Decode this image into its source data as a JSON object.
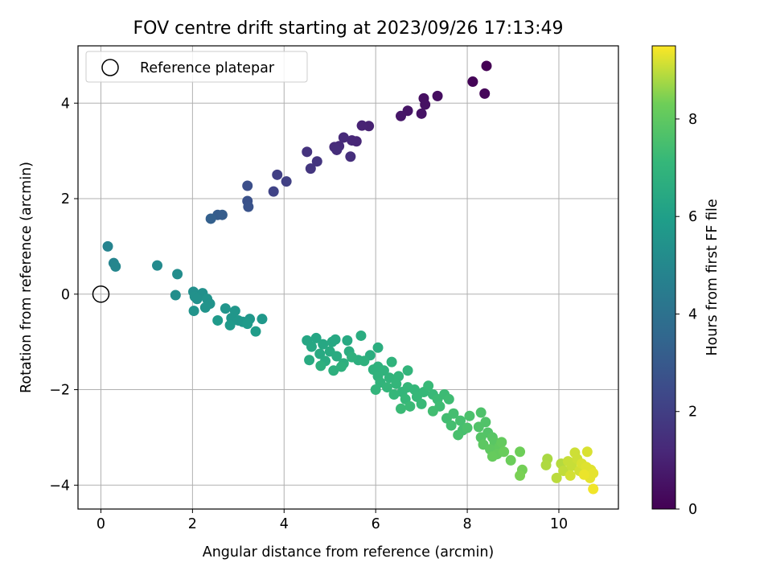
{
  "chart_data": {
    "type": "scatter",
    "title": "FOV centre drift starting at 2023/09/26 17:13:49",
    "xlabel": "Angular distance from reference (arcmin)",
    "ylabel": "Rotation from reference (arcmin)",
    "xlim": [
      -0.5,
      11.3
    ],
    "ylim": [
      -4.5,
      5.2
    ],
    "xticks": [
      0,
      2,
      4,
      6,
      8,
      10
    ],
    "yticks": [
      -4,
      -2,
      0,
      2,
      4
    ],
    "grid": true,
    "legend": {
      "position": "top-left",
      "entries": [
        "Reference platepar"
      ]
    },
    "reference_point": {
      "x": 0,
      "y": 0
    },
    "colorbar": {
      "label": "Hours from first FF file",
      "min": 0,
      "max": 9.5,
      "ticks": [
        0,
        2,
        4,
        6,
        8
      ],
      "colormap": "viridis"
    },
    "points": [
      {
        "x": 8.42,
        "y": 4.78,
        "c": 0.0
      },
      {
        "x": 8.12,
        "y": 4.45,
        "c": 0.1
      },
      {
        "x": 8.38,
        "y": 4.2,
        "c": 0.15
      },
      {
        "x": 7.35,
        "y": 4.15,
        "c": 0.4
      },
      {
        "x": 7.05,
        "y": 4.1,
        "c": 0.45
      },
      {
        "x": 7.08,
        "y": 3.97,
        "c": 0.5
      },
      {
        "x": 7.0,
        "y": 3.78,
        "c": 0.55
      },
      {
        "x": 6.7,
        "y": 3.84,
        "c": 0.6
      },
      {
        "x": 6.55,
        "y": 3.73,
        "c": 0.65
      },
      {
        "x": 5.85,
        "y": 3.52,
        "c": 1.0
      },
      {
        "x": 5.7,
        "y": 3.53,
        "c": 1.05
      },
      {
        "x": 5.58,
        "y": 3.2,
        "c": 1.15
      },
      {
        "x": 5.48,
        "y": 3.22,
        "c": 1.2
      },
      {
        "x": 5.3,
        "y": 3.28,
        "c": 1.25
      },
      {
        "x": 5.2,
        "y": 3.1,
        "c": 1.3
      },
      {
        "x": 5.1,
        "y": 3.08,
        "c": 1.35
      },
      {
        "x": 5.15,
        "y": 3.02,
        "c": 1.4
      },
      {
        "x": 5.45,
        "y": 2.88,
        "c": 1.45
      },
      {
        "x": 4.5,
        "y": 2.98,
        "c": 1.6
      },
      {
        "x": 4.72,
        "y": 2.78,
        "c": 1.65
      },
      {
        "x": 4.58,
        "y": 2.63,
        "c": 1.7
      },
      {
        "x": 3.85,
        "y": 2.5,
        "c": 2.0
      },
      {
        "x": 4.05,
        "y": 2.36,
        "c": 2.05
      },
      {
        "x": 3.77,
        "y": 2.15,
        "c": 2.15
      },
      {
        "x": 3.2,
        "y": 2.27,
        "c": 2.6
      },
      {
        "x": 3.2,
        "y": 1.95,
        "c": 2.7
      },
      {
        "x": 3.22,
        "y": 1.83,
        "c": 2.75
      },
      {
        "x": 2.55,
        "y": 1.66,
        "c": 3.1
      },
      {
        "x": 2.65,
        "y": 1.66,
        "c": 3.15
      },
      {
        "x": 2.4,
        "y": 1.58,
        "c": 3.25
      },
      {
        "x": 0.15,
        "y": 1.0,
        "c": 4.8
      },
      {
        "x": 0.28,
        "y": 0.65,
        "c": 4.85
      },
      {
        "x": 0.32,
        "y": 0.58,
        "c": 4.9
      },
      {
        "x": 1.23,
        "y": 0.6,
        "c": 5.1
      },
      {
        "x": 1.67,
        "y": 0.42,
        "c": 5.2
      },
      {
        "x": 1.63,
        "y": -0.02,
        "c": 5.25
      },
      {
        "x": 2.02,
        "y": 0.05,
        "c": 5.3
      },
      {
        "x": 2.22,
        "y": 0.02,
        "c": 5.35
      },
      {
        "x": 2.05,
        "y": -0.05,
        "c": 5.4
      },
      {
        "x": 2.1,
        "y": -0.1,
        "c": 5.4
      },
      {
        "x": 2.32,
        "y": -0.1,
        "c": 5.45
      },
      {
        "x": 2.38,
        "y": -0.2,
        "c": 5.45
      },
      {
        "x": 2.28,
        "y": -0.28,
        "c": 5.5
      },
      {
        "x": 2.03,
        "y": -0.35,
        "c": 5.5
      },
      {
        "x": 2.72,
        "y": -0.3,
        "c": 5.55
      },
      {
        "x": 2.93,
        "y": -0.35,
        "c": 5.6
      },
      {
        "x": 2.85,
        "y": -0.5,
        "c": 5.6
      },
      {
        "x": 3.0,
        "y": -0.55,
        "c": 5.65
      },
      {
        "x": 3.25,
        "y": -0.52,
        "c": 5.65
      },
      {
        "x": 3.1,
        "y": -0.58,
        "c": 5.7
      },
      {
        "x": 3.52,
        "y": -0.52,
        "c": 5.7
      },
      {
        "x": 2.55,
        "y": -0.55,
        "c": 5.75
      },
      {
        "x": 2.82,
        "y": -0.65,
        "c": 5.75
      },
      {
        "x": 3.2,
        "y": -0.62,
        "c": 5.8
      },
      {
        "x": 3.38,
        "y": -0.78,
        "c": 5.85
      },
      {
        "x": 4.5,
        "y": -0.97,
        "c": 6.3
      },
      {
        "x": 4.7,
        "y": -0.92,
        "c": 6.3
      },
      {
        "x": 4.85,
        "y": -1.05,
        "c": 6.35
      },
      {
        "x": 4.6,
        "y": -1.1,
        "c": 6.35
      },
      {
        "x": 5.05,
        "y": -1.0,
        "c": 6.4
      },
      {
        "x": 5.12,
        "y": -0.95,
        "c": 6.4
      },
      {
        "x": 5.38,
        "y": -0.97,
        "c": 6.45
      },
      {
        "x": 4.78,
        "y": -1.25,
        "c": 6.45
      },
      {
        "x": 5.0,
        "y": -1.2,
        "c": 6.5
      },
      {
        "x": 4.55,
        "y": -1.38,
        "c": 6.5
      },
      {
        "x": 4.9,
        "y": -1.4,
        "c": 6.55
      },
      {
        "x": 5.15,
        "y": -1.3,
        "c": 6.55
      },
      {
        "x": 5.42,
        "y": -1.2,
        "c": 6.6
      },
      {
        "x": 5.68,
        "y": -0.87,
        "c": 6.6
      },
      {
        "x": 6.05,
        "y": -1.12,
        "c": 6.65
      },
      {
        "x": 5.88,
        "y": -1.28,
        "c": 6.65
      },
      {
        "x": 5.62,
        "y": -1.38,
        "c": 6.7
      },
      {
        "x": 5.3,
        "y": -1.45,
        "c": 6.7
      },
      {
        "x": 5.08,
        "y": -1.6,
        "c": 6.75
      },
      {
        "x": 4.8,
        "y": -1.5,
        "c": 6.75
      },
      {
        "x": 5.25,
        "y": -1.52,
        "c": 6.8
      },
      {
        "x": 5.48,
        "y": -1.32,
        "c": 6.8
      },
      {
        "x": 5.75,
        "y": -1.4,
        "c": 6.8
      },
      {
        "x": 5.95,
        "y": -1.58,
        "c": 6.85
      },
      {
        "x": 6.05,
        "y": -1.52,
        "c": 6.85
      },
      {
        "x": 6.18,
        "y": -1.6,
        "c": 6.9
      },
      {
        "x": 6.35,
        "y": -1.42,
        "c": 6.9
      },
      {
        "x": 6.05,
        "y": -1.72,
        "c": 6.9
      },
      {
        "x": 6.1,
        "y": -1.85,
        "c": 6.95
      },
      {
        "x": 6.3,
        "y": -1.75,
        "c": 6.95
      },
      {
        "x": 6.5,
        "y": -1.72,
        "c": 7.0
      },
      {
        "x": 6.7,
        "y": -1.6,
        "c": 7.0
      },
      {
        "x": 6.0,
        "y": -2.0,
        "c": 7.0
      },
      {
        "x": 6.25,
        "y": -1.95,
        "c": 7.05
      },
      {
        "x": 6.45,
        "y": -1.88,
        "c": 7.05
      },
      {
        "x": 6.58,
        "y": -2.05,
        "c": 7.05
      },
      {
        "x": 6.4,
        "y": -2.1,
        "c": 7.1
      },
      {
        "x": 6.7,
        "y": -1.95,
        "c": 7.1
      },
      {
        "x": 6.85,
        "y": -2.0,
        "c": 7.1
      },
      {
        "x": 6.65,
        "y": -2.2,
        "c": 7.15
      },
      {
        "x": 6.9,
        "y": -2.15,
        "c": 7.15
      },
      {
        "x": 7.05,
        "y": -2.05,
        "c": 7.15
      },
      {
        "x": 7.15,
        "y": -1.92,
        "c": 7.2
      },
      {
        "x": 7.25,
        "y": -2.1,
        "c": 7.2
      },
      {
        "x": 7.0,
        "y": -2.3,
        "c": 7.2
      },
      {
        "x": 6.75,
        "y": -2.35,
        "c": 7.25
      },
      {
        "x": 6.55,
        "y": -2.4,
        "c": 7.25
      },
      {
        "x": 7.35,
        "y": -2.2,
        "c": 7.3
      },
      {
        "x": 7.5,
        "y": -2.1,
        "c": 7.3
      },
      {
        "x": 7.6,
        "y": -2.2,
        "c": 7.35
      },
      {
        "x": 7.4,
        "y": -2.35,
        "c": 7.35
      },
      {
        "x": 7.25,
        "y": -2.45,
        "c": 7.4
      },
      {
        "x": 7.55,
        "y": -2.6,
        "c": 7.4
      },
      {
        "x": 7.7,
        "y": -2.5,
        "c": 7.45
      },
      {
        "x": 7.65,
        "y": -2.75,
        "c": 7.45
      },
      {
        "x": 7.85,
        "y": -2.65,
        "c": 7.5
      },
      {
        "x": 7.9,
        "y": -2.85,
        "c": 7.5
      },
      {
        "x": 7.8,
        "y": -2.95,
        "c": 7.55
      },
      {
        "x": 8.0,
        "y": -2.8,
        "c": 7.6
      },
      {
        "x": 8.05,
        "y": -2.55,
        "c": 7.6
      },
      {
        "x": 8.3,
        "y": -2.48,
        "c": 7.65
      },
      {
        "x": 8.25,
        "y": -2.78,
        "c": 7.7
      },
      {
        "x": 8.4,
        "y": -2.68,
        "c": 7.7
      },
      {
        "x": 8.45,
        "y": -2.9,
        "c": 7.75
      },
      {
        "x": 8.3,
        "y": -3.0,
        "c": 7.8
      },
      {
        "x": 8.55,
        "y": -3.0,
        "c": 7.85
      },
      {
        "x": 8.6,
        "y": -3.1,
        "c": 7.9
      },
      {
        "x": 8.35,
        "y": -3.15,
        "c": 7.95
      },
      {
        "x": 8.5,
        "y": -3.25,
        "c": 8.0
      },
      {
        "x": 8.7,
        "y": -3.2,
        "c": 8.05
      },
      {
        "x": 8.65,
        "y": -3.35,
        "c": 8.1
      },
      {
        "x": 8.75,
        "y": -3.1,
        "c": 8.1
      },
      {
        "x": 8.55,
        "y": -3.4,
        "c": 8.15
      },
      {
        "x": 8.8,
        "y": -3.3,
        "c": 8.2
      },
      {
        "x": 8.95,
        "y": -3.48,
        "c": 8.25
      },
      {
        "x": 9.15,
        "y": -3.3,
        "c": 8.3
      },
      {
        "x": 9.2,
        "y": -3.68,
        "c": 8.35
      },
      {
        "x": 9.15,
        "y": -3.8,
        "c": 8.4
      },
      {
        "x": 9.75,
        "y": -3.45,
        "c": 8.8
      },
      {
        "x": 9.72,
        "y": -3.58,
        "c": 8.85
      },
      {
        "x": 10.05,
        "y": -3.55,
        "c": 8.9
      },
      {
        "x": 9.95,
        "y": -3.85,
        "c": 8.95
      },
      {
        "x": 10.1,
        "y": -3.7,
        "c": 9.0
      },
      {
        "x": 10.2,
        "y": -3.5,
        "c": 9.05
      },
      {
        "x": 10.28,
        "y": -3.6,
        "c": 9.05
      },
      {
        "x": 10.35,
        "y": -3.32,
        "c": 9.1
      },
      {
        "x": 10.4,
        "y": -3.45,
        "c": 9.1
      },
      {
        "x": 10.25,
        "y": -3.8,
        "c": 9.15
      },
      {
        "x": 10.45,
        "y": -3.7,
        "c": 9.15
      },
      {
        "x": 10.5,
        "y": -3.55,
        "c": 9.2
      },
      {
        "x": 10.62,
        "y": -3.3,
        "c": 9.2
      },
      {
        "x": 10.6,
        "y": -3.62,
        "c": 9.25
      },
      {
        "x": 10.7,
        "y": -3.68,
        "c": 9.25
      },
      {
        "x": 10.75,
        "y": -3.75,
        "c": 9.3
      },
      {
        "x": 10.68,
        "y": -3.85,
        "c": 9.3
      },
      {
        "x": 10.55,
        "y": -3.78,
        "c": 9.35
      },
      {
        "x": 10.75,
        "y": -4.08,
        "c": 9.4
      }
    ]
  }
}
